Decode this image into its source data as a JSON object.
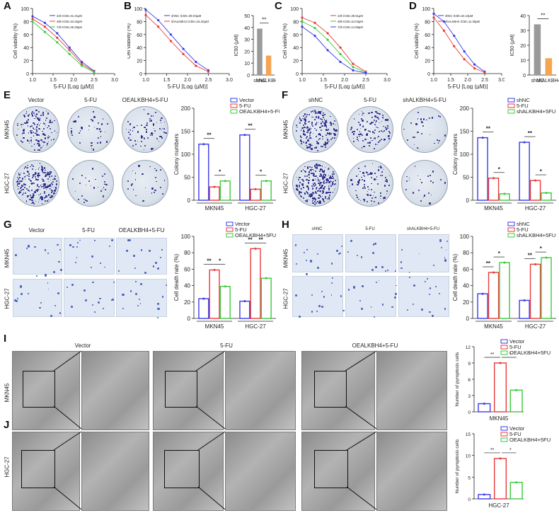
{
  "panel_labels": [
    "A",
    "B",
    "C",
    "D",
    "E",
    "F",
    "G",
    "H",
    "I",
    "J"
  ],
  "colors": {
    "blue": "#3a3ae8",
    "red": "#e83a3a",
    "green": "#3acb3a",
    "grey": "#9a9a9a",
    "orange": "#f5a452",
    "cell": "#2a2a8a"
  },
  "chart_data": [
    {
      "id": "A",
      "type": "line",
      "xlabel": "5-FU [Log (µM)]",
      "ylabel": "Cell viability (%)",
      "xlim": [
        1.0,
        3.0
      ],
      "ylim": [
        0,
        100
      ],
      "xticks": [
        "1.0",
        "1.5",
        "2.0",
        "2.5",
        "3.0"
      ],
      "yticks": [
        "0",
        "20",
        "40",
        "60",
        "80",
        "100"
      ],
      "series": [
        {
          "name": "24h IC50=41.21μM",
          "color": "blue",
          "x": [
            1.0,
            1.3,
            1.6,
            1.9,
            2.2,
            2.5
          ],
          "y": [
            88,
            78,
            62,
            40,
            18,
            4
          ]
        },
        {
          "name": "48h IC50=34.25μM",
          "color": "red",
          "x": [
            1.0,
            1.3,
            1.6,
            1.9,
            2.2,
            2.5
          ],
          "y": [
            84,
            72,
            55,
            36,
            15,
            3
          ]
        },
        {
          "name": "72h IC50=26.29μM",
          "color": "green",
          "x": [
            1.0,
            1.3,
            1.6,
            1.9,
            2.2,
            2.5
          ],
          "y": [
            80,
            64,
            48,
            30,
            12,
            2
          ]
        }
      ]
    },
    {
      "id": "B",
      "type": "line",
      "xlabel": "5-FU [Log (µM)]",
      "ylabel": "Cell viability (%)",
      "xlim": [
        1.0,
        3.0
      ],
      "ylim": [
        0,
        100
      ],
      "xticks": [
        "1.0",
        "1.5",
        "2.0",
        "2.5",
        "3.0"
      ],
      "yticks": [
        "0",
        "20",
        "40",
        "60",
        "80",
        "100"
      ],
      "series": [
        {
          "name": "shNC IC50=39.04μM",
          "color": "blue",
          "x": [
            1.0,
            1.3,
            1.6,
            1.9,
            2.2,
            2.5
          ],
          "y": [
            98,
            82,
            60,
            38,
            18,
            5
          ]
        },
        {
          "name": "shALKBH4 IC50=16.32μM",
          "color": "red",
          "x": [
            1.0,
            1.3,
            1.6,
            1.9,
            2.2,
            2.5
          ],
          "y": [
            90,
            72,
            50,
            30,
            12,
            3
          ]
        }
      ]
    },
    {
      "id": "B-bar",
      "type": "bar",
      "ylabel": "IC50 (μM)",
      "ylim": [
        0,
        50
      ],
      "yticks": [
        "0",
        "10",
        "20",
        "30",
        "40",
        "50"
      ],
      "categories": [
        "shNC",
        "shALKBH4"
      ],
      "values": [
        39.04,
        16.32
      ],
      "bar_colors": [
        "grey",
        "orange"
      ],
      "sig": "**"
    },
    {
      "id": "C",
      "type": "line",
      "xlabel": "5-FU [Log (µM)]",
      "ylabel": "Cell viability (%)",
      "xlim": [
        1.0,
        3.0
      ],
      "ylim": [
        0,
        100
      ],
      "xticks": [
        "1.0",
        "1.5",
        "2.0",
        "2.5",
        "3.0"
      ],
      "yticks": [
        "0",
        "20",
        "40",
        "60",
        "80",
        "100"
      ],
      "series": [
        {
          "name": "24h IC50=30.51μM",
          "color": "red",
          "x": [
            1.0,
            1.3,
            1.6,
            1.9,
            2.2,
            2.5
          ],
          "y": [
            86,
            78,
            62,
            40,
            15,
            3
          ]
        },
        {
          "name": "48h IC50=24.03μM",
          "color": "green",
          "x": [
            1.0,
            1.3,
            1.6,
            1.9,
            2.2,
            2.5
          ],
          "y": [
            80,
            70,
            52,
            30,
            10,
            2
          ]
        },
        {
          "name": "72h IC50=14.99μM",
          "color": "blue",
          "x": [
            1.0,
            1.3,
            1.6,
            1.9,
            2.2,
            2.5
          ],
          "y": [
            72,
            58,
            36,
            18,
            5,
            1
          ]
        }
      ]
    },
    {
      "id": "D",
      "type": "line",
      "xlabel": "5-FU [Log (µM)]",
      "ylabel": "Cell viability (%)",
      "xlim": [
        1.0,
        3.0
      ],
      "ylim": [
        0,
        100
      ],
      "xticks": [
        "1.0",
        "1.5",
        "2.0",
        "2.5",
        "3.0"
      ],
      "yticks": [
        "0",
        "20",
        "40",
        "60",
        "80",
        "100"
      ],
      "series": [
        {
          "name": "shNC IC50=34.10μM",
          "color": "blue",
          "x": [
            1.0,
            1.3,
            1.6,
            1.9,
            2.2,
            2.5
          ],
          "y": [
            92,
            80,
            58,
            34,
            14,
            3
          ]
        },
        {
          "name": "shALKBH4 IC50=11.30μM",
          "color": "red",
          "x": [
            1.0,
            1.3,
            1.6,
            1.9,
            2.2,
            2.5
          ],
          "y": [
            86,
            66,
            42,
            22,
            8,
            2
          ]
        }
      ]
    },
    {
      "id": "D-bar",
      "type": "bar",
      "ylabel": "IC50 (μM)",
      "ylim": [
        0,
        40
      ],
      "yticks": [
        "0",
        "10",
        "20",
        "30",
        "40"
      ],
      "categories": [
        "shNC",
        "shALKBH4"
      ],
      "values": [
        34.1,
        11.3
      ],
      "bar_colors": [
        "grey",
        "orange"
      ],
      "sig": "**"
    },
    {
      "id": "E",
      "type": "grouped-bar",
      "ylabel": "Colony numbers",
      "ylim": [
        0,
        200
      ],
      "yticks": [
        "0",
        "50",
        "100",
        "150",
        "200"
      ],
      "categories": [
        "MKN45",
        "HGC-27"
      ],
      "series": [
        {
          "name": "Vector",
          "color": "blue",
          "values": [
            122,
            142
          ]
        },
        {
          "name": "5-FU",
          "color": "red",
          "values": [
            29,
            24
          ]
        },
        {
          "name": "OEALKBH4+5-FU",
          "color": "green",
          "values": [
            42,
            42
          ]
        }
      ],
      "sig": [
        [
          "**",
          "*"
        ],
        [
          "**",
          "*"
        ]
      ]
    },
    {
      "id": "F",
      "type": "grouped-bar",
      "ylabel": "Colony numbers",
      "ylim": [
        0,
        200
      ],
      "yticks": [
        "0",
        "50",
        "100",
        "150",
        "200"
      ],
      "categories": [
        "MKN45",
        "HGC-27"
      ],
      "series": [
        {
          "name": "shNC",
          "color": "blue",
          "values": [
            136,
            126
          ]
        },
        {
          "name": "5-FU",
          "color": "red",
          "values": [
            48,
            43
          ]
        },
        {
          "name": "shALKBH4+5FU",
          "color": "green",
          "values": [
            14,
            16
          ]
        }
      ],
      "sig": [
        [
          "**",
          "*"
        ],
        [
          "**",
          "*"
        ]
      ]
    },
    {
      "id": "G",
      "type": "grouped-bar",
      "ylabel": "Cell death rate (%)",
      "ylim": [
        0,
        100
      ],
      "yticks": [
        "0",
        "20",
        "40",
        "60",
        "80",
        "100"
      ],
      "categories": [
        "MKN45",
        "HGC-27"
      ],
      "series": [
        {
          "name": "Vector",
          "color": "blue",
          "values": [
            24,
            21
          ]
        },
        {
          "name": "5-FU",
          "color": "red",
          "values": [
            59,
            85
          ]
        },
        {
          "name": "OEALKBH4+5FU",
          "color": "green",
          "values": [
            39,
            49
          ]
        }
      ],
      "sig": [
        [
          "**",
          "*"
        ],
        [
          "**",
          "**"
        ]
      ]
    },
    {
      "id": "H",
      "type": "grouped-bar",
      "ylabel": "Cell death rate (%)",
      "ylim": [
        0,
        100
      ],
      "yticks": [
        "0",
        "20",
        "40",
        "60",
        "80",
        "100"
      ],
      "categories": [
        "MKN45",
        "HGC-27"
      ],
      "series": [
        {
          "name": "shNC",
          "color": "blue",
          "values": [
            30,
            22
          ]
        },
        {
          "name": "5-FU",
          "color": "red",
          "values": [
            56,
            66
          ]
        },
        {
          "name": "shALKBH4+5FU",
          "color": "green",
          "values": [
            68,
            74
          ]
        }
      ],
      "sig": [
        [
          "**",
          "*"
        ],
        [
          "**",
          "*"
        ]
      ]
    },
    {
      "id": "I",
      "type": "bar",
      "ylabel": "Number of pyroptosis cells",
      "xlabel": "MKN45",
      "ylim": [
        0,
        12
      ],
      "yticks": [
        "0",
        "3",
        "6",
        "9",
        "12"
      ],
      "series": [
        {
          "name": "Vector",
          "color": "blue",
          "values": [
            1.5
          ]
        },
        {
          "name": "5-FU",
          "color": "red",
          "values": [
            9
          ]
        },
        {
          "name": "OEALKBH4+5FU",
          "color": "green",
          "values": [
            4
          ]
        }
      ],
      "sig": [
        "**",
        "*"
      ]
    },
    {
      "id": "J",
      "type": "bar",
      "ylabel": "Number of pyroptosis cells",
      "xlabel": "HGC-27",
      "ylim": [
        0,
        15
      ],
      "yticks": [
        "0",
        "5",
        "10",
        "15"
      ],
      "series": [
        {
          "name": "Vector",
          "color": "blue",
          "values": [
            1
          ]
        },
        {
          "name": "5-FU",
          "color": "red",
          "values": [
            9.3
          ]
        },
        {
          "name": "OEALKBH4+5FU",
          "color": "green",
          "values": [
            3.8
          ]
        }
      ],
      "sig": [
        "**",
        "*"
      ]
    }
  ],
  "images": {
    "E": {
      "cols": [
        "Vector",
        "5-FU",
        "OEALKBH4+5-FU"
      ],
      "rows": [
        "MKN45",
        "HGC-27"
      ]
    },
    "F": {
      "cols": [
        "shNC",
        "5-FU",
        "shALKBH4+5-FU"
      ],
      "rows": [
        "MKN45",
        "HGC-27"
      ]
    },
    "G": {
      "cols": [
        "Vector",
        "5-FU",
        "OEALKBH4+5-FU"
      ],
      "rows": [
        "MKN45",
        "HGC-27"
      ]
    },
    "H": {
      "cols": [
        "shNC",
        "5-FU",
        "shALKBH4+5-FU"
      ],
      "rows": [
        "MKN45",
        "HGC-27"
      ]
    },
    "IJ": {
      "cols": [
        "Vector",
        "5-FU",
        "OEALKBH4+5-FU"
      ],
      "rows": [
        "MKN45",
        "HGC-27"
      ]
    }
  }
}
